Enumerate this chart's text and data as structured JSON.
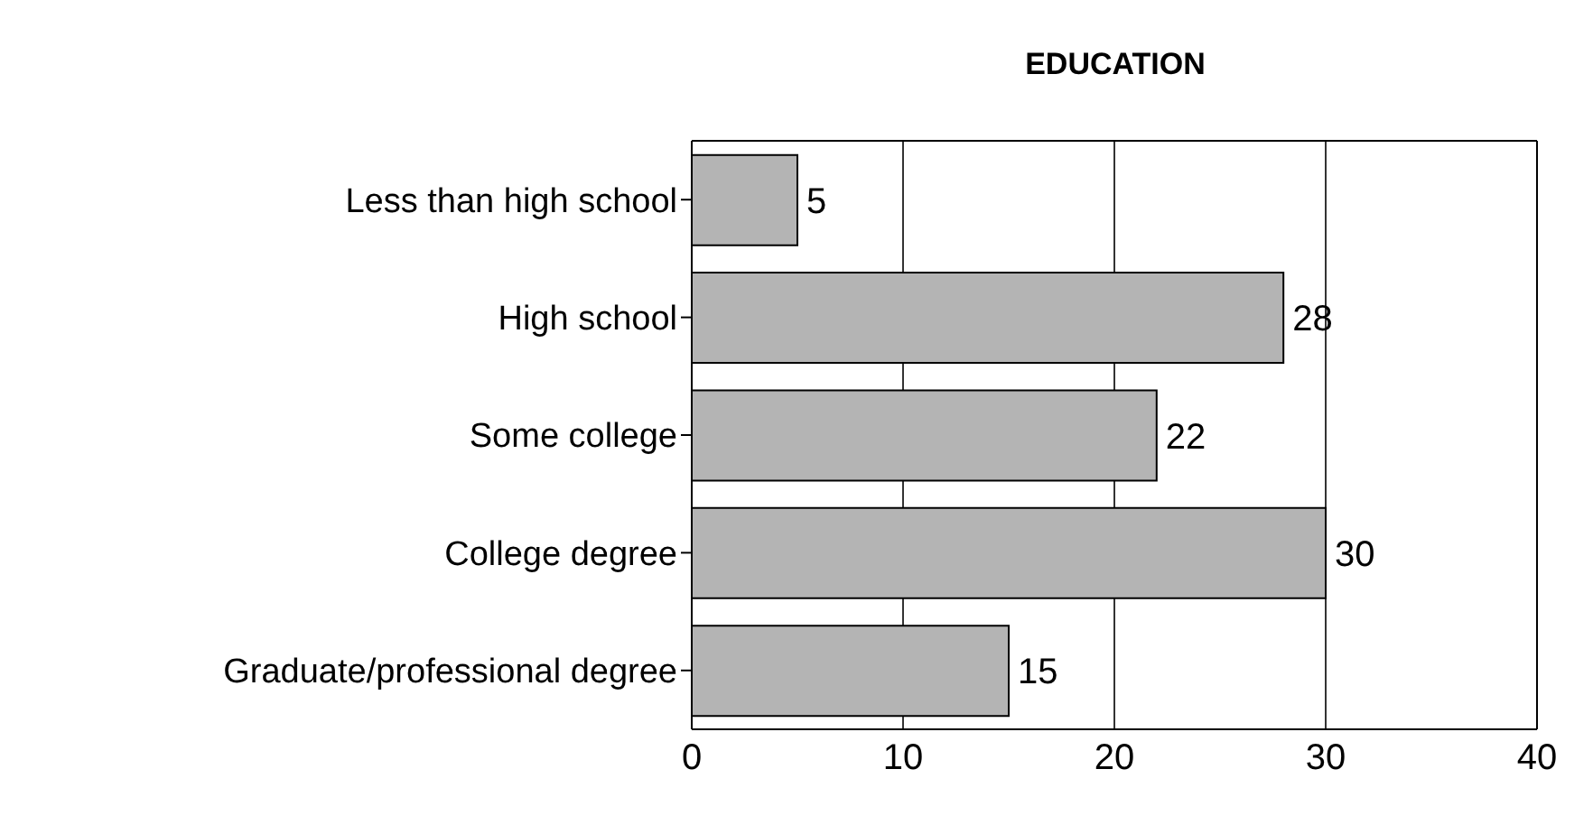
{
  "chart_data": {
    "type": "bar",
    "orientation": "horizontal",
    "title": "EDUCATION",
    "categories": [
      "Less than high school",
      "High school",
      "Some college",
      "College degree",
      "Graduate/professional degree"
    ],
    "values": [
      5,
      28,
      22,
      30,
      15
    ],
    "color": "#b4b4b4",
    "xlim": [
      0,
      40
    ],
    "xticks": [
      0,
      10,
      20,
      30,
      40
    ],
    "grid": "x",
    "data_labels": true
  }
}
